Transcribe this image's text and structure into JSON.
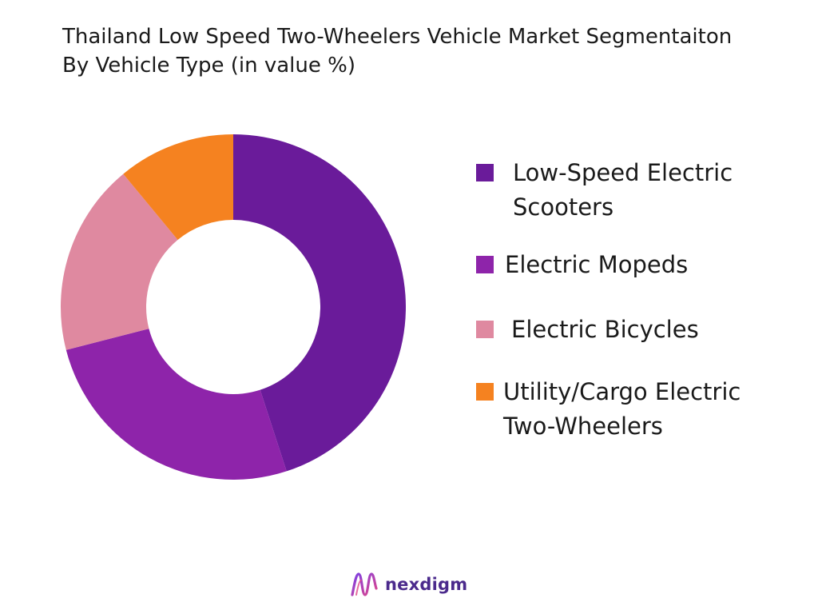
{
  "chart_data": {
    "type": "pie",
    "variant": "donut",
    "title": " Thailand Low Speed Two-Wheelers Vehicle Market Segmentaiton By Vehicle Type (in value %)",
    "categories": [
      "Low-Speed Electric Scooters",
      "Electric Mopeds",
      "Electric Bicycles",
      "Utility/Cargo Electric Two-Wheelers"
    ],
    "values": [
      45,
      26,
      18,
      11
    ],
    "colors": [
      "#6a1b9a",
      "#8e24aa",
      "#df89a0",
      "#f58220"
    ],
    "legend_position": "right"
  },
  "logo": {
    "text": "nexdigm"
  }
}
